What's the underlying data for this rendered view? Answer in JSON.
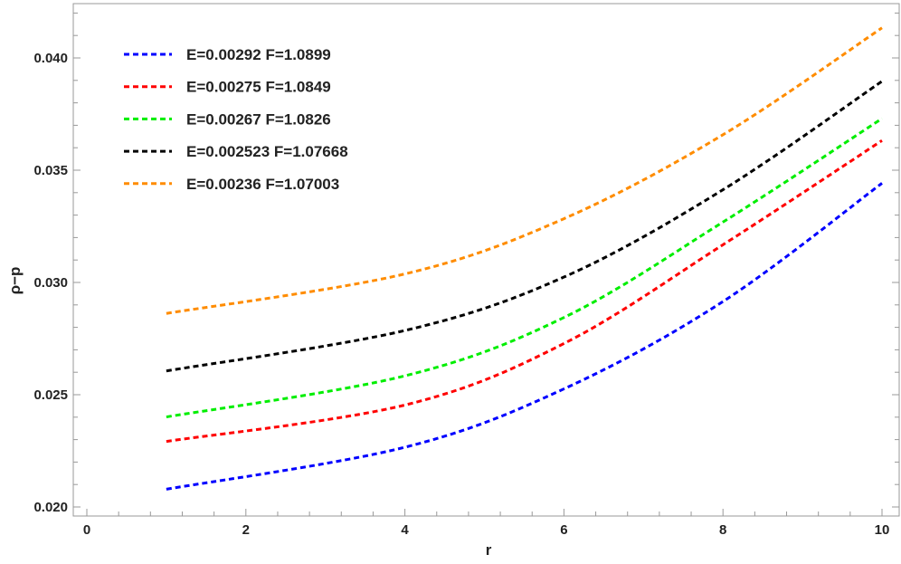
{
  "chart_data": {
    "type": "line",
    "title": "",
    "xlabel": "r",
    "ylabel": "ρ−p",
    "xlim": [
      0,
      10
    ],
    "ylim": [
      0.0195,
      0.0424
    ],
    "xticks": [
      "0",
      "2",
      "4",
      "6",
      "8",
      "10"
    ],
    "yticks": [
      "0.020",
      "0.025",
      "0.030",
      "0.035",
      "0.040"
    ],
    "grid": false,
    "legend_position": "top-left",
    "line_style": "dashed",
    "x": [
      1,
      4,
      6,
      8,
      10
    ],
    "series": [
      {
        "name": "E=0.00292 F=1.0899",
        "color": "#0000ff",
        "values": [
          0.02079,
          0.02266,
          0.02526,
          0.02915,
          0.03442
        ]
      },
      {
        "name": "E=0.00275 F=1.0849",
        "color": "#ff0000",
        "values": [
          0.02292,
          0.02454,
          0.02728,
          0.03168,
          0.03632
        ]
      },
      {
        "name": "E=0.00267 F=1.0826",
        "color": "#00ee00",
        "values": [
          0.02401,
          0.02584,
          0.02844,
          0.03269,
          0.0373
        ]
      },
      {
        "name": "E=0.002523 F=1.07668",
        "color": "#000000",
        "values": [
          0.02606,
          0.02786,
          0.03024,
          0.03413,
          0.03896
        ]
      },
      {
        "name": "E=0.00236 F=1.07003",
        "color": "#ff8c00",
        "values": [
          0.02862,
          0.03038,
          0.03284,
          0.03658,
          0.04134
        ]
      }
    ]
  }
}
